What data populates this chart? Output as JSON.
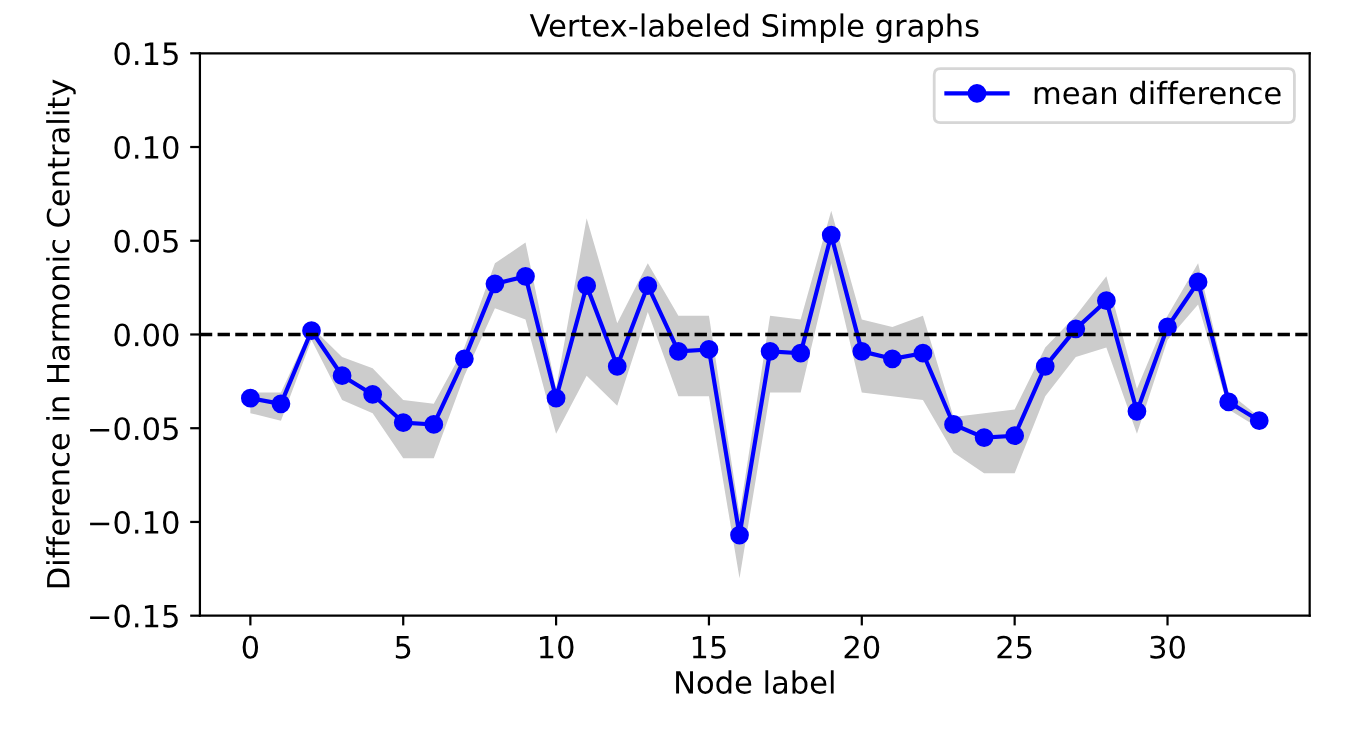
{
  "chart_data": {
    "type": "line",
    "title": "Vertex-labeled Simple graphs",
    "xlabel": "Node label",
    "ylabel": "Difference in Harmonic Centrality",
    "x": [
      0,
      1,
      2,
      3,
      4,
      5,
      6,
      7,
      8,
      9,
      10,
      11,
      12,
      13,
      14,
      15,
      16,
      17,
      18,
      19,
      20,
      21,
      22,
      23,
      24,
      25,
      26,
      27,
      28,
      29,
      30,
      31,
      32,
      33
    ],
    "series": [
      {
        "name": "mean difference",
        "color": "#0000ff",
        "values": [
          -0.034,
          -0.037,
          0.002,
          -0.022,
          -0.032,
          -0.047,
          -0.048,
          -0.013,
          0.027,
          0.031,
          -0.034,
          0.026,
          -0.017,
          0.026,
          -0.009,
          -0.008,
          -0.107,
          -0.009,
          -0.01,
          0.053,
          -0.009,
          -0.013,
          -0.01,
          -0.048,
          -0.055,
          -0.054,
          -0.017,
          0.003,
          0.018,
          -0.041,
          0.004,
          0.028,
          -0.036,
          -0.046
        ],
        "lower": [
          -0.042,
          -0.046,
          -0.003,
          -0.035,
          -0.042,
          -0.066,
          -0.066,
          -0.022,
          0.014,
          0.008,
          -0.053,
          -0.022,
          -0.038,
          0.012,
          -0.033,
          -0.033,
          -0.13,
          -0.031,
          -0.031,
          0.038,
          -0.031,
          -0.033,
          -0.035,
          -0.063,
          -0.074,
          -0.074,
          -0.033,
          -0.012,
          -0.007,
          -0.053,
          -0.003,
          0.016,
          -0.04,
          -0.05
        ],
        "upper": [
          -0.031,
          -0.031,
          0.004,
          -0.012,
          -0.018,
          -0.035,
          -0.037,
          -0.007,
          0.038,
          0.049,
          -0.029,
          0.062,
          0.006,
          0.038,
          0.01,
          0.01,
          -0.096,
          0.01,
          0.008,
          0.066,
          0.008,
          0.004,
          0.01,
          -0.044,
          -0.042,
          -0.04,
          -0.007,
          0.01,
          0.031,
          -0.029,
          0.01,
          0.038,
          -0.031,
          -0.044
        ]
      }
    ],
    "xlim": [
      -1.65,
      34.65
    ],
    "xticks": [
      0,
      5,
      10,
      15,
      20,
      25,
      30
    ],
    "ylim": [
      -0.15,
      0.15
    ],
    "yticks": [
      {
        "value": -0.15,
        "label": "−0.15"
      },
      {
        "value": -0.1,
        "label": "−0.10"
      },
      {
        "value": -0.05,
        "label": "−0.05"
      },
      {
        "value": 0,
        "label": "0.00"
      },
      {
        "value": 0.05,
        "label": "0.05"
      },
      {
        "value": 0.1,
        "label": "0.10"
      },
      {
        "value": 0.15,
        "label": "0.15"
      }
    ],
    "ref_lines": [
      {
        "axis": "y",
        "value": 0,
        "color": "#000000",
        "line_style": "dashed"
      }
    ],
    "marker": "circle",
    "grid": false,
    "legend": "top right"
  }
}
